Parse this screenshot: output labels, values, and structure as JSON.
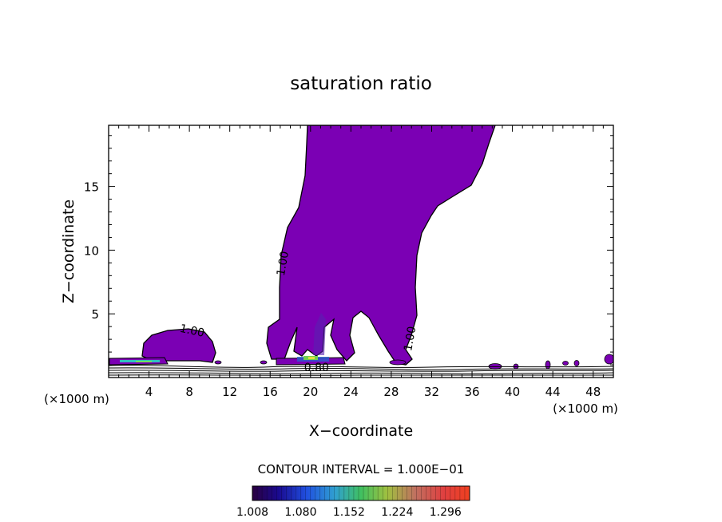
{
  "chart_data": {
    "type": "contour",
    "title": "saturation ratio",
    "xlabel": "X−coordinate",
    "ylabel": "Z−coordinate",
    "x_unit_left": "(×1000 m)",
    "x_unit_right": "(×1000 m)",
    "xlim": [
      0,
      50
    ],
    "ylim": [
      0,
      19.8
    ],
    "xticks": [
      4,
      8,
      12,
      16,
      20,
      24,
      28,
      32,
      36,
      40,
      44,
      48
    ],
    "yticks": [
      5,
      10,
      15
    ],
    "contour_labels": [
      {
        "text": "1.00",
        "x": 8.2,
        "y": 3.4
      },
      {
        "text": "1.00",
        "x": 17.6,
        "y": 8.9
      },
      {
        "text": "1.00",
        "x": 30.2,
        "y": 3.0
      },
      {
        "text": "0.80",
        "x": 20.6,
        "y": 0.5
      }
    ],
    "contour_interval_text": "CONTOUR INTERVAL = 1.000E−01",
    "colorbar_ticks": [
      "1.008",
      "1.080",
      "1.152",
      "1.224",
      "1.296"
    ],
    "colorbar_range": [
      1.008,
      1.332
    ],
    "fill_color": "#7b00b4",
    "grid": false
  }
}
